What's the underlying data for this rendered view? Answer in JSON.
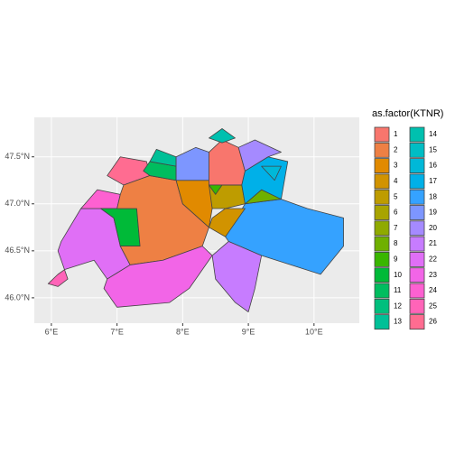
{
  "chart_data": {
    "type": "map",
    "xlim": [
      5.74,
      10.69
    ],
    "ylim": [
      45.73,
      47.92
    ],
    "xticks": [
      {
        "value": 6,
        "label": "6°E"
      },
      {
        "value": 7,
        "label": "7°E"
      },
      {
        "value": 8,
        "label": "8°E"
      },
      {
        "value": 9,
        "label": "9°E"
      },
      {
        "value": 10,
        "label": "10°E"
      }
    ],
    "yticks": [
      {
        "value": 46,
        "label": "46.0°N"
      },
      {
        "value": 46.5,
        "label": "46.5°N"
      },
      {
        "value": 47,
        "label": "47.0°N"
      },
      {
        "value": 47.5,
        "label": "47.5°N"
      }
    ],
    "grid": true,
    "legend": {
      "title": "as.factor(KTNR)",
      "items": [
        {
          "label": "1",
          "color": "#F8766D"
        },
        {
          "label": "2",
          "color": "#EE8044"
        },
        {
          "label": "3",
          "color": "#E18A00"
        },
        {
          "label": "4",
          "color": "#D19300"
        },
        {
          "label": "5",
          "color": "#BE9C00"
        },
        {
          "label": "6",
          "color": "#A8A400"
        },
        {
          "label": "7",
          "color": "#8FAA00"
        },
        {
          "label": "8",
          "color": "#6FB000"
        },
        {
          "label": "9",
          "color": "#39B600"
        },
        {
          "label": "10",
          "color": "#00BA38"
        },
        {
          "label": "11",
          "color": "#00BD5F"
        },
        {
          "label": "12",
          "color": "#00BF7D"
        },
        {
          "label": "13",
          "color": "#00C097"
        },
        {
          "label": "14",
          "color": "#00C0AF"
        },
        {
          "label": "15",
          "color": "#00BDC4"
        },
        {
          "label": "16",
          "color": "#00B8D8"
        },
        {
          "label": "17",
          "color": "#00B0E8"
        },
        {
          "label": "18",
          "color": "#35A2FF"
        },
        {
          "label": "19",
          "color": "#7D96FF"
        },
        {
          "label": "20",
          "color": "#A58AFF"
        },
        {
          "label": "21",
          "color": "#C77CFF"
        },
        {
          "label": "22",
          "color": "#E06FF6"
        },
        {
          "label": "23",
          "color": "#F265E7"
        },
        {
          "label": "24",
          "color": "#FD61D1"
        },
        {
          "label": "25",
          "color": "#FF64B8"
        },
        {
          "label": "26",
          "color": "#FF6C91"
        }
      ]
    }
  }
}
